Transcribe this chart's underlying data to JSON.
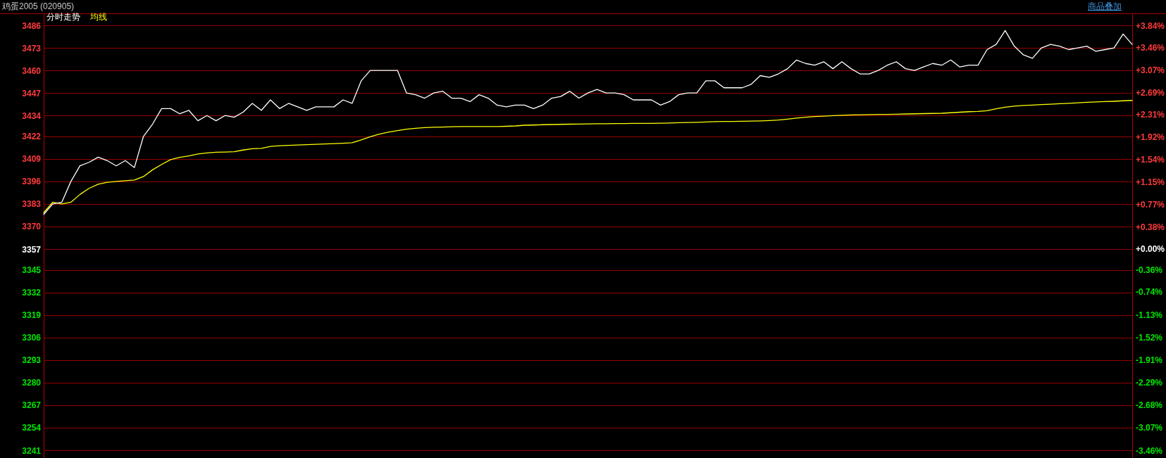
{
  "chart_data": {
    "type": "line",
    "title": "鸡蛋2005 (020905)",
    "annotations": [
      "商品叠加"
    ],
    "grid": true,
    "categories": [
      null,
      null,
      null,
      null,
      null,
      null,
      null,
      null,
      null,
      null,
      null,
      null,
      null,
      null,
      null,
      null,
      null,
      null,
      null,
      null,
      null,
      null,
      null,
      null,
      null,
      null,
      null,
      null,
      null,
      null,
      null,
      null,
      null,
      null,
      null,
      null,
      null,
      null,
      null,
      null,
      null,
      null,
      null,
      null,
      null,
      null,
      null,
      null,
      null,
      null,
      null,
      null,
      null,
      null,
      null,
      null,
      null,
      null,
      null,
      null,
      null,
      null,
      null,
      null,
      null,
      null,
      null,
      null,
      null,
      null,
      null,
      null,
      null,
      null,
      null,
      null,
      null,
      null,
      null,
      null,
      null,
      null,
      null,
      null,
      null,
      null,
      null,
      null,
      null,
      null,
      null,
      null,
      null,
      null,
      null,
      null,
      null,
      null,
      null,
      null,
      null,
      null,
      null,
      null,
      null,
      null,
      null,
      null,
      null,
      null,
      null,
      null,
      null,
      null,
      null,
      null,
      null,
      null,
      null,
      null,
      null
    ],
    "ylim": [
      3241,
      3486
    ],
    "yticks": [
      3241,
      3254,
      3267,
      3280,
      3293,
      3306,
      3319,
      3332,
      3345,
      3357,
      3370,
      3383,
      3396,
      3409,
      3422,
      3434,
      3447,
      3460,
      3473,
      3486
    ],
    "y2lim": [
      -3.46,
      3.84
    ],
    "y2ticks": [
      {
        "value": -3.46,
        "label": "-3.46%"
      },
      {
        "value": -3.07,
        "label": "-3.07%"
      },
      {
        "value": -2.68,
        "label": "-2.68%"
      },
      {
        "value": -2.29,
        "label": "-2.29%"
      },
      {
        "value": -1.91,
        "label": "-1.91%"
      },
      {
        "value": -1.52,
        "label": "-1.52%"
      },
      {
        "value": -1.13,
        "label": "-1.13%"
      },
      {
        "value": -0.74,
        "label": "-0.74%"
      },
      {
        "value": -0.36,
        "label": "-0.36%"
      },
      {
        "value": 0,
        "label": "+0.00%"
      },
      {
        "value": 0.38,
        "label": "+0.38%"
      },
      {
        "value": 0.77,
        "label": "+0.77%"
      },
      {
        "value": 1.15,
        "label": "+1.15%"
      },
      {
        "value": 1.54,
        "label": "+1.54%"
      },
      {
        "value": 1.92,
        "label": "+1.92%"
      },
      {
        "value": 2.31,
        "label": "+2.31%"
      },
      {
        "value": 2.69,
        "label": "+2.69%"
      },
      {
        "value": 3.07,
        "label": "+3.07%"
      },
      {
        "value": 3.46,
        "label": "+3.46%"
      },
      {
        "value": 3.84,
        "label": "+3.84%"
      }
    ],
    "series": [
      {
        "name": "分时走势",
        "color": "#ffffff",
        "values": [
          3377,
          3383,
          3384,
          3396,
          3405,
          3407,
          3410,
          3408,
          3405,
          3408,
          3404,
          3422,
          3429,
          3438,
          3438,
          3435,
          3437,
          3431,
          3434,
          3431,
          3434,
          3433,
          3436,
          3441,
          3437,
          3443,
          3438,
          3441,
          3439,
          3437,
          3439,
          3439,
          3439,
          3443,
          3441,
          3454,
          3460,
          3460,
          3460,
          3460,
          3447,
          3446,
          3444,
          3447,
          3448,
          3444,
          3444,
          3442,
          3446,
          3444,
          3440,
          3439,
          3440,
          3440,
          3438,
          3440,
          3444,
          3445,
          3448,
          3444,
          3447,
          3449,
          3447,
          3447,
          3446,
          3443,
          3443,
          3443,
          3440,
          3442,
          3446,
          3447,
          3447,
          3454,
          3454,
          3450,
          3450,
          3450,
          3452,
          3457,
          3456,
          3458,
          3461,
          3466,
          3464,
          3463,
          3465,
          3461,
          3465,
          3461,
          3458,
          3458,
          3460,
          3463,
          3465,
          3461,
          3460,
          3462,
          3464,
          3463,
          3466,
          3462,
          3463,
          3463,
          3472,
          3475,
          3483,
          3474,
          3469,
          3467,
          3473,
          3475,
          3474,
          3472,
          3473,
          3474,
          3471,
          3472,
          3473,
          3481,
          3475
        ]
      },
      {
        "name": "均线",
        "color": "#ffff00",
        "values": [
          3378,
          3384,
          3383,
          3384,
          3388.5,
          3392,
          3394.4,
          3395.5,
          3396,
          3396.4,
          3396.8,
          3398.8,
          3402.7,
          3405.8,
          3408.6,
          3409.9,
          3410.7,
          3411.8,
          3412.4,
          3412.8,
          3412.9,
          3413.1,
          3414.1,
          3414.9,
          3415.1,
          3416.2,
          3416.6,
          3416.8,
          3417,
          3417.2,
          3417.4,
          3417.6,
          3417.8,
          3418,
          3418.3,
          3419.9,
          3421.8,
          3423.3,
          3424.4,
          3425.3,
          3426.1,
          3426.6,
          3427,
          3427.2,
          3427.3,
          3427.5,
          3427.6,
          3427.6,
          3427.6,
          3427.6,
          3427.6,
          3427.8,
          3428,
          3428.4,
          3428.5,
          3428.7,
          3428.8,
          3428.9,
          3429,
          3429.1,
          3429.2,
          3429.3,
          3429.3,
          3429.4,
          3429.4,
          3429.5,
          3429.5,
          3429.5,
          3429.6,
          3429.7,
          3429.9,
          3430,
          3430.1,
          3430.3,
          3430.5,
          3430.6,
          3430.6,
          3430.7,
          3430.8,
          3430.9,
          3431.1,
          3431.4,
          3431.9,
          3432.5,
          3433,
          3433.4,
          3433.6,
          3433.9,
          3434.1,
          3434.3,
          3434.4,
          3434.5,
          3434.6,
          3434.6,
          3434.7,
          3434.9,
          3435,
          3435.1,
          3435.2,
          3435.3,
          3435.6,
          3435.9,
          3436.2,
          3436.4,
          3436.8,
          3437.9,
          3438.8,
          3439.4,
          3439.8,
          3440,
          3440.3,
          3440.5,
          3440.8,
          3441,
          3441.3,
          3441.6,
          3441.8,
          3442,
          3442.2,
          3442.5,
          3442.7
        ]
      }
    ]
  }
}
